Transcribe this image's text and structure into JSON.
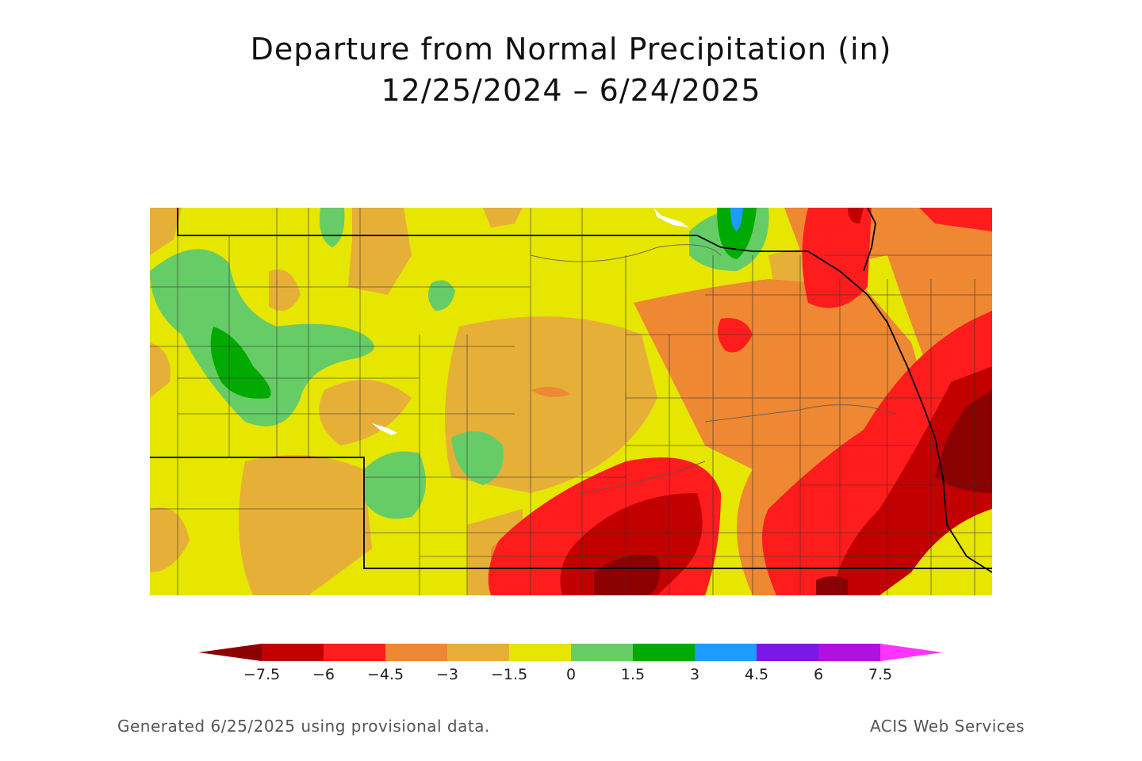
{
  "title": {
    "line1": "Departure from Normal Precipitation (in)",
    "line2": "12/25/2024 – 6/24/2025"
  },
  "legend": {
    "labels": [
      "−7.5",
      "−6",
      "−4.5",
      "−3",
      "−1.5",
      "0",
      "1.5",
      "3",
      "4.5",
      "6",
      "7.5"
    ],
    "colors": [
      "#8b0000",
      "#c20000",
      "#ff1c1c",
      "#ee8833",
      "#e6b038",
      "#e6e600",
      "#66cc66",
      "#00aa00",
      "#1e9bff",
      "#7a18e8",
      "#b010e0",
      "#ff33ff"
    ]
  },
  "footer": {
    "left": "Generated 6/25/2025 using provisional data.",
    "right": "ACIS Web Services"
  }
}
